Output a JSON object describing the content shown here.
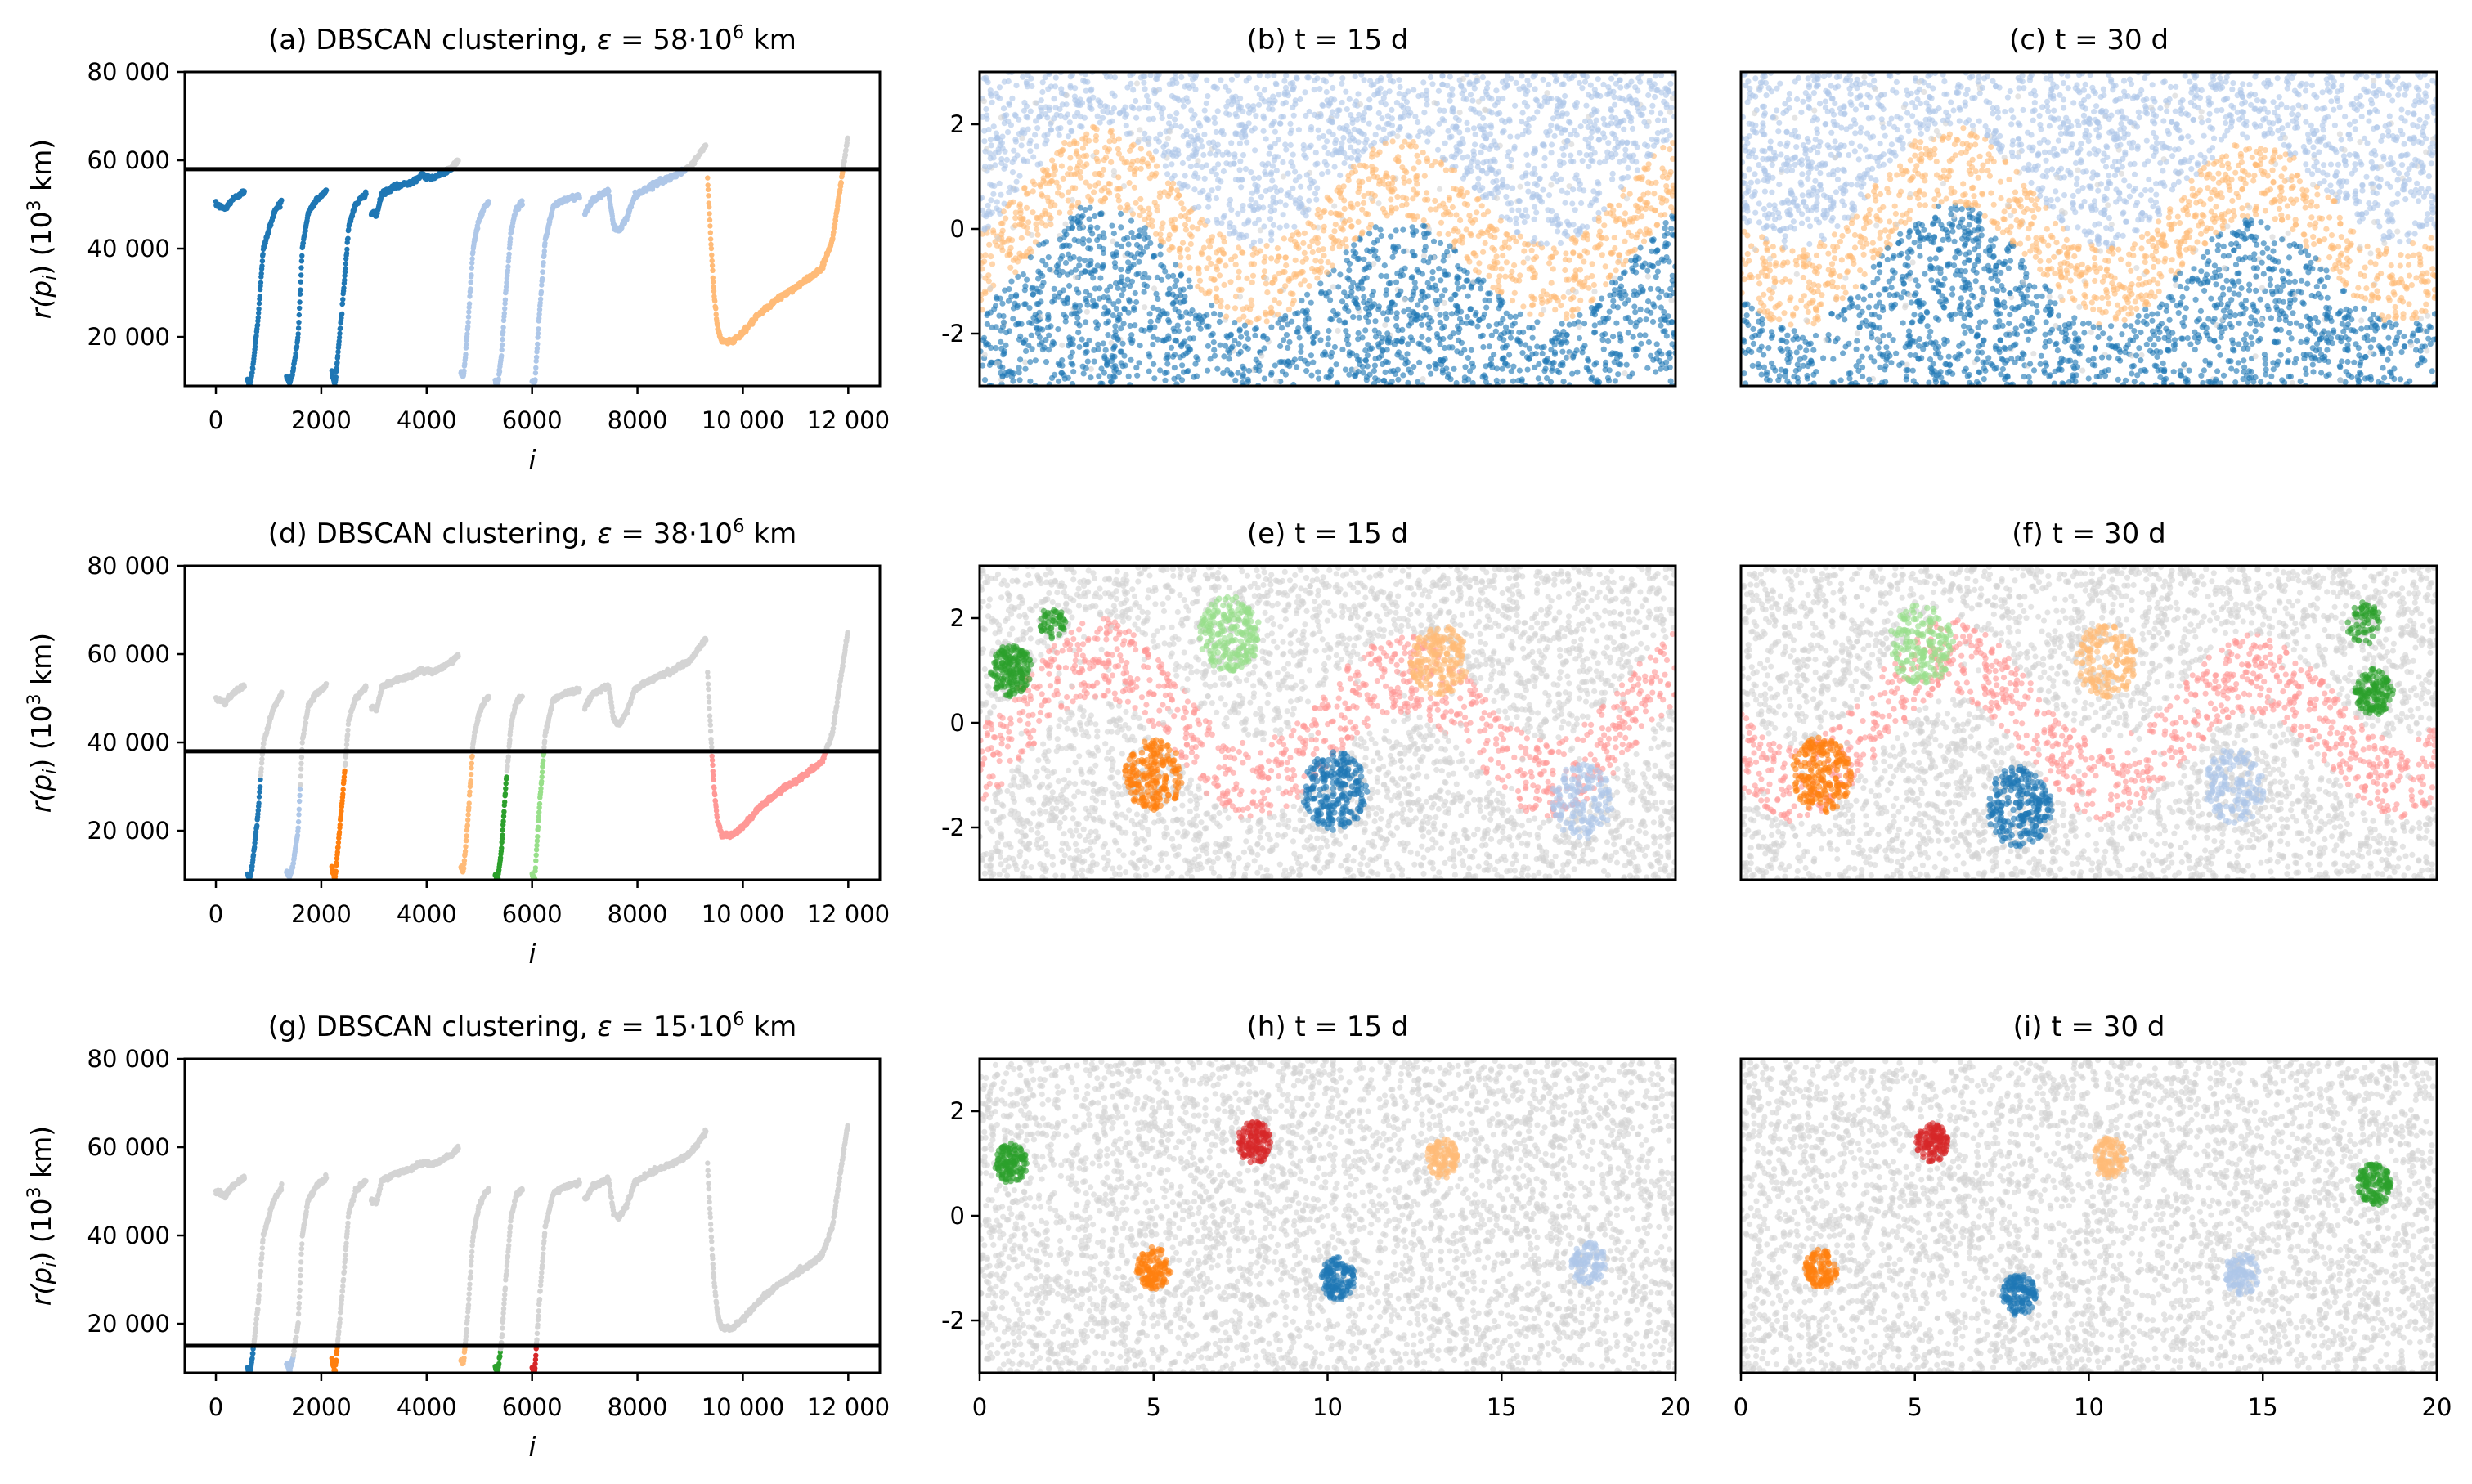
{
  "figure": {
    "palette": {
      "blue": "#1f77b4",
      "light_blue": "#aec7e8",
      "orange": "#ff7f0e",
      "light_orange": "#ffbb78",
      "green": "#2ca02c",
      "light_green": "#98df8a",
      "red": "#d62728",
      "light_red": "#ff9896",
      "noise": "#d4d4d4",
      "threshold": "#000000"
    }
  },
  "chart_data": [
    {
      "id": "a",
      "type": "scatter",
      "kind": "reachability",
      "title": "(a) DBSCAN clustering, ε = 58·10⁶ km",
      "title_parts": [
        "(a) DBSCAN clustering, ",
        "ε",
        " = 58·10",
        "6",
        " km"
      ],
      "xlabel": "i",
      "ylabel_parts": [
        "r(",
        "p",
        "i",
        ") (10",
        "3",
        " km)"
      ],
      "xlim": [
        -590,
        12600
      ],
      "ylim": [
        8900,
        80000
      ],
      "xticks": [
        0,
        2000,
        4000,
        6000,
        8000,
        10000,
        12000
      ],
      "xtick_labels": [
        "0",
        "2000",
        "4000",
        "6000",
        "8000",
        "10 000",
        "12 000"
      ],
      "yticks": [
        20000,
        40000,
        60000,
        80000
      ],
      "ytick_labels": [
        "20 000",
        "40 000",
        "60 000",
        "80 000"
      ],
      "threshold": 58000,
      "clusters": [
        {
          "range": [
            0,
            4500
          ],
          "color": "blue"
        },
        {
          "range": [
            4550,
            9060
          ],
          "color": "light_blue"
        },
        {
          "range": [
            9330,
            11900
          ],
          "color": "light_orange"
        }
      ]
    },
    {
      "id": "b",
      "type": "scatter",
      "title": "(b) t = 15 d",
      "xlim": [
        0,
        20
      ],
      "ylim": [
        -3,
        3
      ],
      "yticks": [
        -2,
        0,
        2
      ],
      "ytick_labels": [
        "-2",
        "0",
        "2"
      ],
      "xticks": [],
      "background": "light_blue",
      "band": {
        "color": "light_orange",
        "phase": 0,
        "halfwidth": 0.75
      },
      "below": "blue",
      "clusters": []
    },
    {
      "id": "c",
      "type": "scatter",
      "title": "(c) t = 30 d",
      "xlim": [
        0,
        20
      ],
      "ylim": [
        -3,
        3
      ],
      "yticks": [],
      "xticks": [],
      "background": "light_blue",
      "band": {
        "color": "light_orange",
        "phase": -2.6,
        "halfwidth": 0.75
      },
      "below": "blue",
      "clusters": []
    },
    {
      "id": "d",
      "type": "scatter",
      "kind": "reachability",
      "title": "(d) DBSCAN clustering, ε = 38·10⁶ km",
      "title_parts": [
        "(d) DBSCAN clustering, ",
        "ε",
        " = 38·10",
        "6",
        " km"
      ],
      "xlabel": "i",
      "ylabel_parts": [
        "r(",
        "p",
        "i",
        ") (10",
        "3",
        " km)"
      ],
      "xlim": [
        -590,
        12600
      ],
      "ylim": [
        8900,
        80000
      ],
      "xticks": [
        0,
        2000,
        4000,
        6000,
        8000,
        10000,
        12000
      ],
      "xtick_labels": [
        "0",
        "2000",
        "4000",
        "6000",
        "8000",
        "10 000",
        "12 000"
      ],
      "yticks": [
        20000,
        40000,
        60000,
        80000
      ],
      "ytick_labels": [
        "20 000",
        "40 000",
        "60 000",
        "80 000"
      ],
      "threshold": 38000,
      "clusters": [
        {
          "range": [
            560,
            850
          ],
          "color": "blue"
        },
        {
          "range": [
            1330,
            1600
          ],
          "color": "light_blue"
        },
        {
          "range": [
            2170,
            2450
          ],
          "color": "orange"
        },
        {
          "range": [
            4600,
            4880
          ],
          "color": "light_orange"
        },
        {
          "range": [
            5250,
            5520
          ],
          "color": "green"
        },
        {
          "range": [
            5990,
            6240
          ],
          "color": "light_green"
        },
        {
          "range": [
            9330,
            11650
          ],
          "color": "light_red"
        }
      ]
    },
    {
      "id": "e",
      "type": "scatter",
      "title": "(e) t = 15 d",
      "xlim": [
        0,
        20
      ],
      "ylim": [
        -3,
        3
      ],
      "yticks": [
        -2,
        0,
        2
      ],
      "ytick_labels": [
        "-2",
        "0",
        "2"
      ],
      "xticks": [],
      "background": "noise",
      "band": {
        "color": "light_red",
        "phase": 0,
        "halfwidth": 0.75
      },
      "clusters": [
        {
          "color": "green",
          "cx": 0.9,
          "cy": 1.0,
          "r": 0.55,
          "n": 170
        },
        {
          "color": "green",
          "cx": 2.1,
          "cy": 1.9,
          "r": 0.35,
          "n": 50
        },
        {
          "color": "light_green",
          "cx": 7.2,
          "cy": 1.7,
          "r": 0.8,
          "n": 210
        },
        {
          "color": "light_orange",
          "cx": 13.2,
          "cy": 1.2,
          "r": 0.75,
          "n": 190
        },
        {
          "color": "orange",
          "cx": 5.0,
          "cy": -1.0,
          "r": 0.75,
          "n": 200
        },
        {
          "color": "blue",
          "cx": 10.2,
          "cy": -1.3,
          "r": 0.85,
          "n": 230
        },
        {
          "color": "light_blue",
          "cx": 17.3,
          "cy": -1.5,
          "r": 0.8,
          "n": 150
        }
      ]
    },
    {
      "id": "f",
      "type": "scatter",
      "title": "(f) t = 30 d",
      "xlim": [
        0,
        20
      ],
      "ylim": [
        -3,
        3
      ],
      "yticks": [],
      "xticks": [],
      "background": "noise",
      "band": {
        "color": "light_red",
        "phase": -2.6,
        "halfwidth": 0.75
      },
      "clusters": [
        {
          "color": "orange",
          "cx": 2.3,
          "cy": -1.0,
          "r": 0.8,
          "n": 210
        },
        {
          "color": "blue",
          "cx": 8.0,
          "cy": -1.6,
          "r": 0.85,
          "n": 230
        },
        {
          "color": "light_blue",
          "cx": 14.2,
          "cy": -1.2,
          "r": 0.8,
          "n": 150
        },
        {
          "color": "light_orange",
          "cx": 10.5,
          "cy": 1.2,
          "r": 0.8,
          "n": 170
        },
        {
          "color": "light_green",
          "cx": 5.2,
          "cy": 1.5,
          "r": 0.85,
          "n": 170
        },
        {
          "color": "green",
          "cx": 18.2,
          "cy": 0.6,
          "r": 0.5,
          "n": 140
        },
        {
          "color": "green",
          "cx": 17.9,
          "cy": 1.9,
          "r": 0.45,
          "n": 60
        }
      ]
    },
    {
      "id": "g",
      "type": "scatter",
      "kind": "reachability",
      "title": "(g) DBSCAN clustering, ε = 15·10⁶ km",
      "title_parts": [
        "(g) DBSCAN clustering, ",
        "ε",
        " = 15·10",
        "6",
        " km"
      ],
      "xlabel": "i",
      "ylabel_parts": [
        "r(",
        "p",
        "i",
        ") (10",
        "3",
        " km)"
      ],
      "xlim": [
        -590,
        12600
      ],
      "ylim": [
        8900,
        80000
      ],
      "xticks": [
        0,
        2000,
        4000,
        6000,
        8000,
        10000,
        12000
      ],
      "xtick_labels": [
        "0",
        "2000",
        "4000",
        "6000",
        "8000",
        "10 000",
        "12 000"
      ],
      "yticks": [
        20000,
        40000,
        60000,
        80000
      ],
      "ytick_labels": [
        "20 000",
        "40 000",
        "60 000",
        "80 000"
      ],
      "threshold": 15000,
      "clusters": [
        {
          "range": [
            560,
            720
          ],
          "color": "blue"
        },
        {
          "range": [
            1330,
            1470
          ],
          "color": "light_blue"
        },
        {
          "range": [
            2170,
            2330
          ],
          "color": "orange"
        },
        {
          "range": [
            4600,
            4760
          ],
          "color": "light_orange"
        },
        {
          "range": [
            5250,
            5400
          ],
          "color": "green"
        },
        {
          "range": [
            5990,
            6120
          ],
          "color": "red"
        }
      ]
    },
    {
      "id": "h",
      "type": "scatter",
      "title": "(h) t = 15 d",
      "xlim": [
        0,
        20
      ],
      "ylim": [
        -3,
        3
      ],
      "yticks": [
        -2,
        0,
        2
      ],
      "ytick_labels": [
        "-2",
        "0",
        "2"
      ],
      "xticks": [
        0,
        5,
        10,
        15,
        20
      ],
      "xtick_labels": [
        "0",
        "5",
        "10",
        "15",
        "20"
      ],
      "background": "noise",
      "clusters": [
        {
          "color": "green",
          "cx": 0.9,
          "cy": 1.0,
          "r": 0.42,
          "n": 130
        },
        {
          "color": "red",
          "cx": 7.9,
          "cy": 1.4,
          "r": 0.45,
          "n": 130
        },
        {
          "color": "light_orange",
          "cx": 13.3,
          "cy": 1.1,
          "r": 0.42,
          "n": 110
        },
        {
          "color": "orange",
          "cx": 5.0,
          "cy": -1.0,
          "r": 0.45,
          "n": 120
        },
        {
          "color": "blue",
          "cx": 10.3,
          "cy": -1.2,
          "r": 0.45,
          "n": 130
        },
        {
          "color": "light_blue",
          "cx": 17.5,
          "cy": -0.9,
          "r": 0.45,
          "n": 100
        }
      ]
    },
    {
      "id": "i",
      "type": "scatter",
      "title": "(i) t = 30 d",
      "xlim": [
        0,
        20
      ],
      "ylim": [
        -3,
        3
      ],
      "yticks": [],
      "xticks": [
        0,
        5,
        10,
        15,
        20
      ],
      "xtick_labels": [
        "0",
        "5",
        "10",
        "15",
        "20"
      ],
      "background": "noise",
      "clusters": [
        {
          "color": "red",
          "cx": 5.5,
          "cy": 1.4,
          "r": 0.42,
          "n": 120
        },
        {
          "color": "light_orange",
          "cx": 10.6,
          "cy": 1.1,
          "r": 0.45,
          "n": 110
        },
        {
          "color": "green",
          "cx": 18.2,
          "cy": 0.6,
          "r": 0.45,
          "n": 130
        },
        {
          "color": "orange",
          "cx": 2.3,
          "cy": -1.0,
          "r": 0.42,
          "n": 120
        },
        {
          "color": "blue",
          "cx": 8.0,
          "cy": -1.5,
          "r": 0.45,
          "n": 130
        },
        {
          "color": "light_blue",
          "cx": 14.4,
          "cy": -1.1,
          "r": 0.45,
          "n": 100
        }
      ]
    }
  ],
  "reachability_curve": [
    [
      [
        0,
        50000
      ],
      [
        80,
        49500
      ],
      [
        180,
        49000
      ],
      [
        300,
        51000
      ],
      [
        540,
        53000
      ]
    ],
    [
      [
        600,
        10000
      ],
      [
        650,
        9000
      ],
      [
        700,
        13000
      ],
      [
        800,
        24000
      ],
      [
        900,
        40000
      ],
      [
        1000,
        44000
      ],
      [
        1100,
        48000
      ],
      [
        1250,
        51000
      ]
    ],
    [
      [
        1340,
        11000
      ],
      [
        1400,
        9500
      ],
      [
        1460,
        12000
      ],
      [
        1560,
        20000
      ],
      [
        1640,
        40000
      ],
      [
        1750,
        48000
      ],
      [
        1900,
        51000
      ],
      [
        2100,
        53000
      ]
    ],
    [
      [
        2200,
        12000
      ],
      [
        2260,
        9000
      ],
      [
        2330,
        18000
      ],
      [
        2420,
        30000
      ],
      [
        2520,
        45000
      ],
      [
        2650,
        50000
      ],
      [
        2850,
        52500
      ]
    ],
    [
      [
        2950,
        48000
      ],
      [
        3050,
        47500
      ],
      [
        3150,
        52500
      ],
      [
        3400,
        54000
      ],
      [
        3700,
        55000
      ],
      [
        3900,
        56500
      ],
      [
        4100,
        56000
      ],
      [
        4300,
        57000
      ],
      [
        4500,
        58500
      ],
      [
        4600,
        60000
      ]
    ],
    [
      [
        4650,
        12000
      ],
      [
        4700,
        11000
      ],
      [
        4780,
        22000
      ],
      [
        4880,
        40000
      ],
      [
        4980,
        46000
      ],
      [
        5100,
        49500
      ],
      [
        5180,
        50500
      ]
    ],
    [
      [
        5300,
        10000
      ],
      [
        5350,
        9000
      ],
      [
        5420,
        16000
      ],
      [
        5500,
        30000
      ],
      [
        5600,
        44000
      ],
      [
        5700,
        49000
      ],
      [
        5820,
        50500
      ]
    ],
    [
      [
        6000,
        10000
      ],
      [
        6050,
        9000
      ],
      [
        6130,
        24000
      ],
      [
        6250,
        42000
      ],
      [
        6400,
        49500
      ],
      [
        6600,
        51000
      ],
      [
        6900,
        52000
      ]
    ],
    [
      [
        7000,
        48000
      ],
      [
        7150,
        51000
      ],
      [
        7450,
        53000
      ],
      [
        7550,
        45000
      ],
      [
        7650,
        44000
      ],
      [
        7800,
        47000
      ],
      [
        7950,
        52000
      ],
      [
        8300,
        54500
      ],
      [
        8700,
        56500
      ],
      [
        9000,
        58500
      ],
      [
        9300,
        63500
      ]
    ],
    [
      [
        9330,
        56000
      ],
      [
        9400,
        40000
      ],
      [
        9450,
        30000
      ],
      [
        9520,
        22000
      ],
      [
        9600,
        19000
      ],
      [
        9800,
        19000
      ],
      [
        10000,
        21000
      ],
      [
        10300,
        25000
      ],
      [
        10700,
        29000
      ],
      [
        11100,
        32000
      ],
      [
        11500,
        35500
      ],
      [
        11700,
        42000
      ],
      [
        11900,
        58000
      ],
      [
        11990,
        65000
      ]
    ]
  ]
}
